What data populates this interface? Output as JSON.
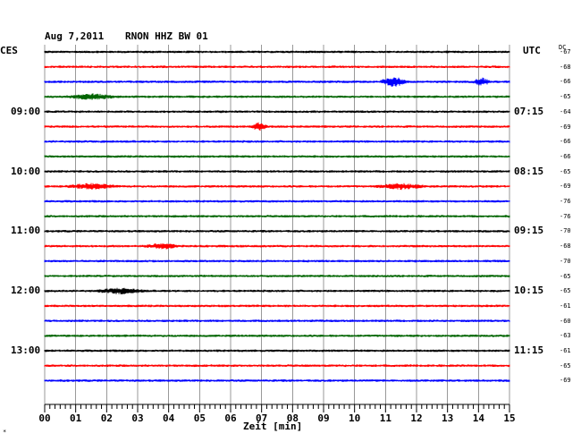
{
  "header": {
    "date": "Aug 7,2011",
    "station": "RNON HHZ BW 01",
    "left_timezone": "CES",
    "right_timezone": "UTC",
    "dc_label": "DC"
  },
  "left_time_labels": [
    "09:00",
    "10:00",
    "11:00",
    "12:00",
    "13:00"
  ],
  "right_time_labels": [
    "07:15",
    "08:15",
    "09:15",
    "10:15",
    "11:15"
  ],
  "x_axis_label": "Zeit [min]",
  "corner_mark": "*",
  "colors": {
    "black": "#000000",
    "red": "#ff0000",
    "blue": "#0000ff",
    "green": "#006400",
    "grid": "#000000"
  },
  "chart_data": {
    "type": "line",
    "xlabel": "Zeit [min]",
    "xlim": [
      0,
      15
    ],
    "x_ticks": [
      "00",
      "01",
      "02",
      "03",
      "04",
      "05",
      "06",
      "07",
      "08",
      "09",
      "10",
      "11",
      "12",
      "13",
      "14",
      "15"
    ],
    "trace_color_cycle": [
      "black",
      "red",
      "blue",
      "green"
    ],
    "dc_offsets": [
      -67,
      -68,
      -66,
      -65,
      -64,
      -69,
      -66,
      -66,
      -65,
      -69,
      -76,
      -76,
      -70,
      -68,
      -70,
      -65,
      -65,
      -61,
      -60,
      -63,
      -61,
      -65,
      -69
    ],
    "events": [
      {
        "trace": 2,
        "start_min": 10.8,
        "end_min": 11.7,
        "amp": "strong"
      },
      {
        "trace": 2,
        "start_min": 13.8,
        "end_min": 14.4,
        "amp": "medium"
      },
      {
        "trace": 3,
        "start_min": 0.6,
        "end_min": 2.4,
        "amp": "weak"
      },
      {
        "trace": 5,
        "start_min": 6.6,
        "end_min": 7.2,
        "amp": "medium"
      },
      {
        "trace": 9,
        "start_min": 0.6,
        "end_min": 2.4,
        "amp": "weak"
      },
      {
        "trace": 9,
        "start_min": 10.6,
        "end_min": 12.4,
        "amp": "weak"
      },
      {
        "trace": 13,
        "start_min": 3.2,
        "end_min": 4.4,
        "amp": "weak"
      },
      {
        "trace": 16,
        "start_min": 1.6,
        "end_min": 3.3,
        "amp": "weak"
      }
    ]
  }
}
